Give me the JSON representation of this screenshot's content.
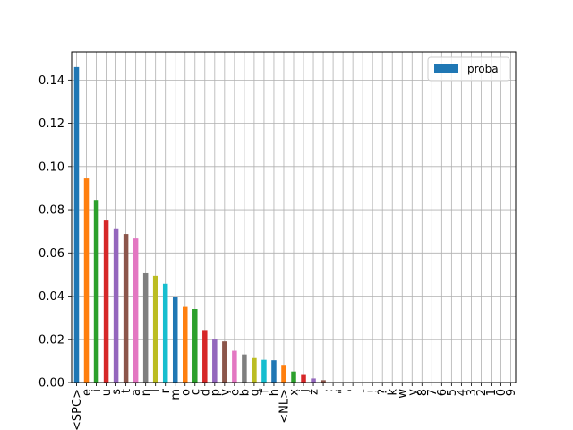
{
  "chart_data": {
    "type": "bar",
    "categories": [
      "<SPC>",
      "e",
      "i",
      "u",
      "s",
      "t",
      "a",
      "n",
      "l",
      "r",
      "m",
      "o",
      "c",
      "d",
      "p",
      "v",
      "é",
      "b",
      "g",
      "f",
      "h",
      "<NL>",
      "x",
      "j",
      "z",
      ".",
      ":",
      "\"",
      "'",
      "-",
      "!",
      "?",
      "k",
      "w",
      "y",
      "8",
      "7",
      "6",
      "5",
      "4",
      "3",
      "2",
      "1",
      "0",
      "9"
    ],
    "values": [
      0.146,
      0.0945,
      0.0845,
      0.075,
      0.071,
      0.0688,
      0.0667,
      0.0506,
      0.0494,
      0.0457,
      0.0397,
      0.035,
      0.034,
      0.0243,
      0.0203,
      0.019,
      0.0147,
      0.013,
      0.0113,
      0.0105,
      0.0103,
      0.0082,
      0.0051,
      0.0035,
      0.0019,
      0.0011,
      0.0002,
      0.0001,
      0.0001,
      0.0001,
      0.0001,
      0.0001,
      0.0001,
      0.0001,
      0.0001,
      0.0001,
      0.0001,
      0.0001,
      0.0001,
      0.0001,
      0.0001,
      0.0001,
      0.0001,
      0.0001,
      0.0001
    ],
    "series_name": "proba",
    "ylim": [
      0,
      0.153
    ],
    "yticks": [
      "0.00",
      "0.02",
      "0.04",
      "0.06",
      "0.08",
      "0.10",
      "0.12",
      "0.14"
    ],
    "ytick_values": [
      0,
      0.02,
      0.04,
      0.06,
      0.08,
      0.1,
      0.12,
      0.14
    ],
    "grid": true,
    "legend_position": "top-right",
    "bar_colors": [
      "#1f77b4",
      "#ff7f0e",
      "#2ca02c",
      "#d62728",
      "#9467bd",
      "#8c564b",
      "#e377c2",
      "#7f7f7f",
      "#bcbd22",
      "#17becf"
    ],
    "legend_color": "#1f77b4"
  }
}
